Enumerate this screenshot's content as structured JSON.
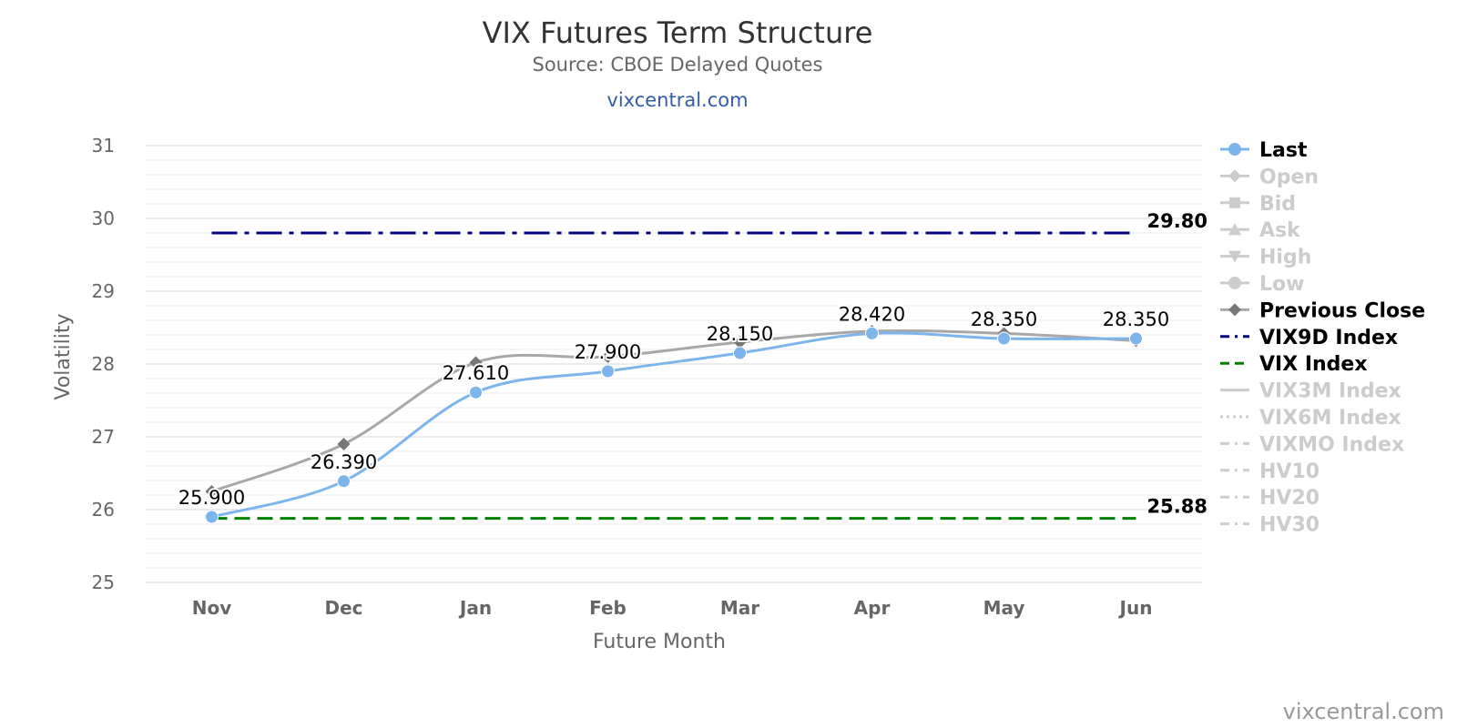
{
  "chart_data": {
    "type": "line",
    "title": "VIX Futures Term Structure",
    "subtitle": "Source: CBOE Delayed Quotes",
    "site_link": "vixcentral.com",
    "credits": "vixcentral.com",
    "xlabel": "Future Month",
    "ylabel": "Volatility",
    "categories": [
      "Nov",
      "Dec",
      "Jan",
      "Feb",
      "Mar",
      "Apr",
      "May",
      "Jun"
    ],
    "ylim": [
      25,
      31
    ],
    "yticks": [
      "25",
      "26",
      "27",
      "28",
      "29",
      "30",
      "31"
    ],
    "minor_grid_step": 0.2,
    "grid": true,
    "legend_position": "right",
    "series": [
      {
        "name": "Last",
        "values": [
          25.9,
          26.39,
          27.61,
          27.9,
          28.15,
          28.42,
          28.35,
          28.35
        ],
        "labels": [
          "25.900",
          "26.390",
          "27.610",
          "27.900",
          "28.150",
          "28.420",
          "28.350",
          "28.350"
        ],
        "color": "#7cb5ec",
        "marker": "circle",
        "visible": true
      },
      {
        "name": "Open",
        "color": "#cccccc",
        "marker": "diamond",
        "visible": false
      },
      {
        "name": "Bid",
        "color": "#cccccc",
        "marker": "square",
        "visible": false
      },
      {
        "name": "Ask",
        "color": "#cccccc",
        "marker": "triangle",
        "visible": false
      },
      {
        "name": "High",
        "color": "#cccccc",
        "marker": "triangle-down",
        "visible": false
      },
      {
        "name": "Low",
        "color": "#cccccc",
        "marker": "circle",
        "visible": false
      },
      {
        "name": "Previous Close",
        "values": [
          26.25,
          26.9,
          28.02,
          28.1,
          28.3,
          28.45,
          28.42,
          28.32
        ],
        "color": "#a8a8a8",
        "marker_color": "#777777",
        "marker": "diamond",
        "visible": true
      }
    ],
    "reference_lines": [
      {
        "name": "VIX9D Index",
        "value": 29.8,
        "label": "29.80",
        "color": "#000080",
        "dash": "dash-dot",
        "visible": true
      },
      {
        "name": "VIX Index",
        "value": 25.88,
        "label": "25.88",
        "color": "#008000",
        "dash": "dash",
        "visible": true
      },
      {
        "name": "VIX3M Index",
        "color": "#cccccc",
        "dash": "solid",
        "visible": false
      },
      {
        "name": "VIX6M Index",
        "color": "#cccccc",
        "dash": "dot",
        "visible": false
      },
      {
        "name": "VIXMO Index",
        "color": "#cccccc",
        "dash": "dash-dot",
        "visible": false
      },
      {
        "name": "HV10",
        "color": "#cccccc",
        "dash": "dash-dot",
        "visible": false
      },
      {
        "name": "HV20",
        "color": "#cccccc",
        "dash": "dash-dot",
        "visible": false
      },
      {
        "name": "HV30",
        "color": "#cccccc",
        "dash": "dash-dot",
        "visible": false
      }
    ],
    "legend_colors": {
      "active": "#000000",
      "hidden": "#cccccc"
    }
  }
}
